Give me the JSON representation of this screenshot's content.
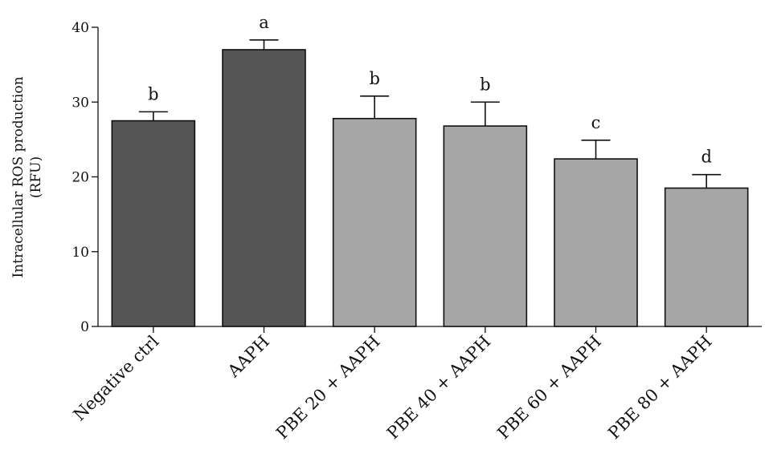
{
  "chart_data": {
    "type": "bar",
    "title": "",
    "xlabel": "",
    "ylabel": "Intracellular ROS production",
    "ylabel_unit": "(RFU)",
    "ylim": [
      0,
      40
    ],
    "yticks": [
      "0",
      "10",
      "20",
      "30",
      "40"
    ],
    "grid": false,
    "legend": "none",
    "categories": [
      "Negative ctrl",
      "AAPH",
      "PBE 20 + AAPH",
      "PBE 40 + AAPH",
      "PBE 60 + AAPH",
      "PBE 80 + AAPH"
    ],
    "values": [
      27.5,
      37.0,
      27.8,
      26.8,
      22.4,
      18.5
    ],
    "error": [
      1.2,
      1.3,
      3.0,
      3.2,
      2.5,
      1.8
    ],
    "significance": [
      "b",
      "a",
      "b",
      "b",
      "c",
      "d"
    ],
    "bar_colors": [
      "#555555",
      "#555555",
      "#a6a6a6",
      "#a6a6a6",
      "#a6a6a6",
      "#a6a6a6"
    ]
  }
}
